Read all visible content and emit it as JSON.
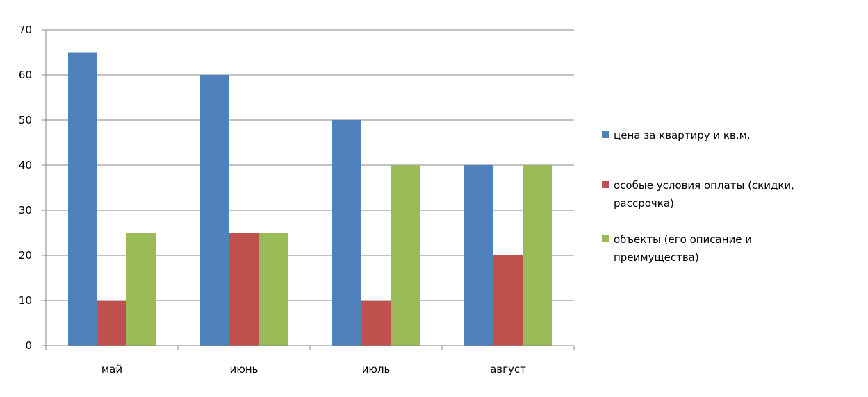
{
  "chart_data": {
    "type": "bar",
    "categories": [
      "май",
      "июнь",
      "июль",
      "август"
    ],
    "series": [
      {
        "name": "цена за квартиру и кв.м.",
        "values": [
          65,
          60,
          50,
          40
        ],
        "color": "#4F81BD"
      },
      {
        "name": "особые условия оплаты (скидки, рассрочка)",
        "values": [
          10,
          25,
          10,
          20
        ],
        "color": "#C0504D"
      },
      {
        "name": "объекты (его описание и преимущества)",
        "values": [
          25,
          25,
          40,
          40
        ],
        "color": "#9BBB59"
      }
    ],
    "legend_lines": [
      [
        "цена за квартиру и кв.м."
      ],
      [
        "особые условия оплаты (скидки,",
        "рассрочка)"
      ],
      [
        "объекты (его описание и",
        "преимущества)"
      ]
    ],
    "ylim": [
      0,
      70
    ],
    "yticks": [
      0,
      10,
      20,
      30,
      40,
      50,
      60,
      70
    ],
    "grid": true,
    "legend_position": "right",
    "gridline_color": "#868686"
  }
}
